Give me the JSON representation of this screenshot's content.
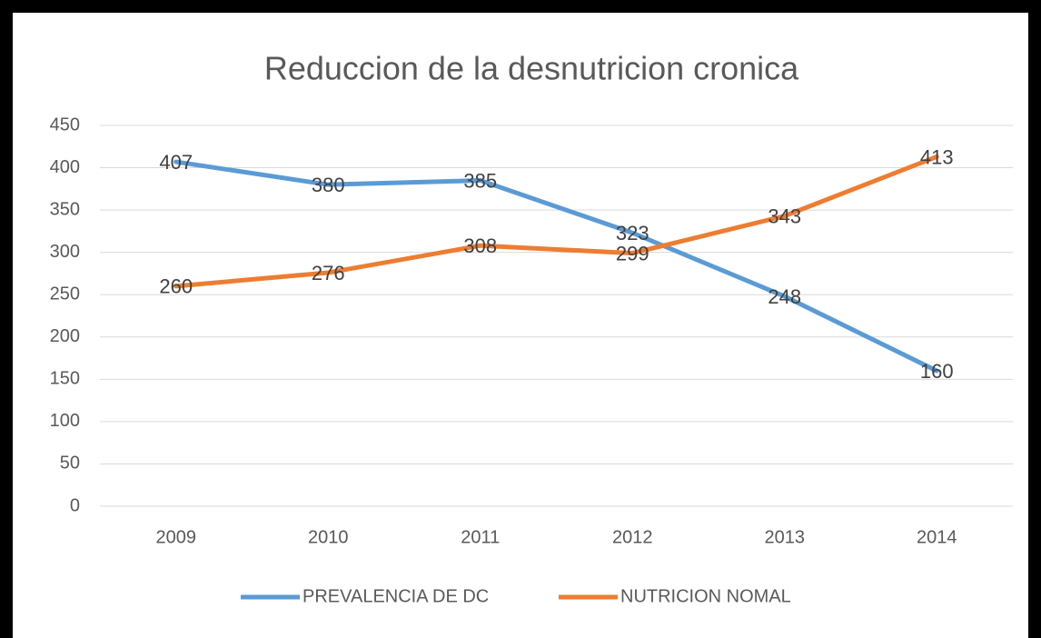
{
  "chart_data": {
    "type": "line",
    "title": "Reduccion de la desnutricion cronica",
    "categories": [
      "2009",
      "2010",
      "2011",
      "2012",
      "2013",
      "2014"
    ],
    "series": [
      {
        "name": "PREVALENCIA DE DC",
        "color": "#5b9bd5",
        "values": [
          407,
          380,
          385,
          323,
          248,
          160
        ]
      },
      {
        "name": "NUTRICION NOMAL",
        "color": "#ed7d31",
        "values": [
          260,
          276,
          308,
          299,
          343,
          413
        ]
      }
    ],
    "ylim": [
      0,
      450
    ],
    "yticks": [
      0,
      50,
      100,
      150,
      200,
      250,
      300,
      350,
      400,
      450
    ],
    "grid": true,
    "legend": "bottom"
  }
}
